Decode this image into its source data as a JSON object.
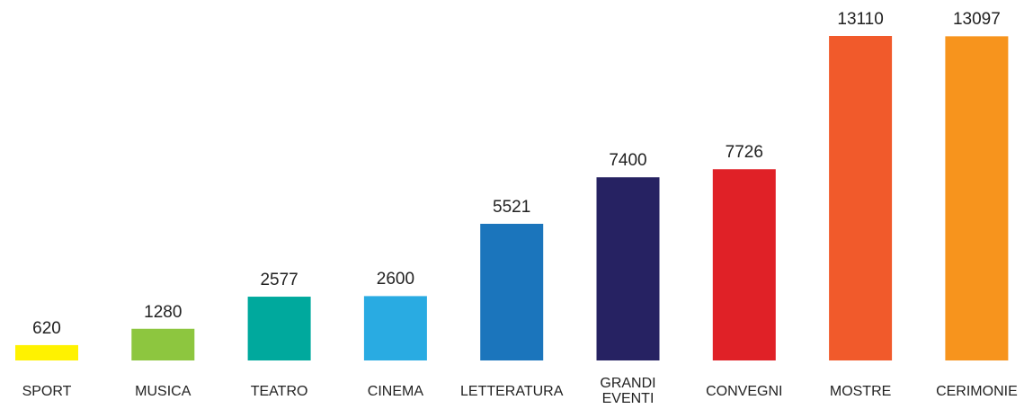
{
  "chart_data": {
    "type": "bar",
    "categories": [
      "SPORT",
      "MUSICA",
      "TEATRO",
      "CINEMA",
      "LETTERATURA",
      "GRANDI EVENTI",
      "CONVEGNI",
      "MOSTRE",
      "CERIMONIE"
    ],
    "values": [
      620,
      1280,
      2577,
      2600,
      5521,
      7400,
      7726,
      13110,
      13097
    ],
    "colors": [
      "#fff200",
      "#8dc63f",
      "#00a99d",
      "#29abe2",
      "#1b75bc",
      "#262262",
      "#e02127",
      "#f15a2b",
      "#f7941d"
    ]
  }
}
